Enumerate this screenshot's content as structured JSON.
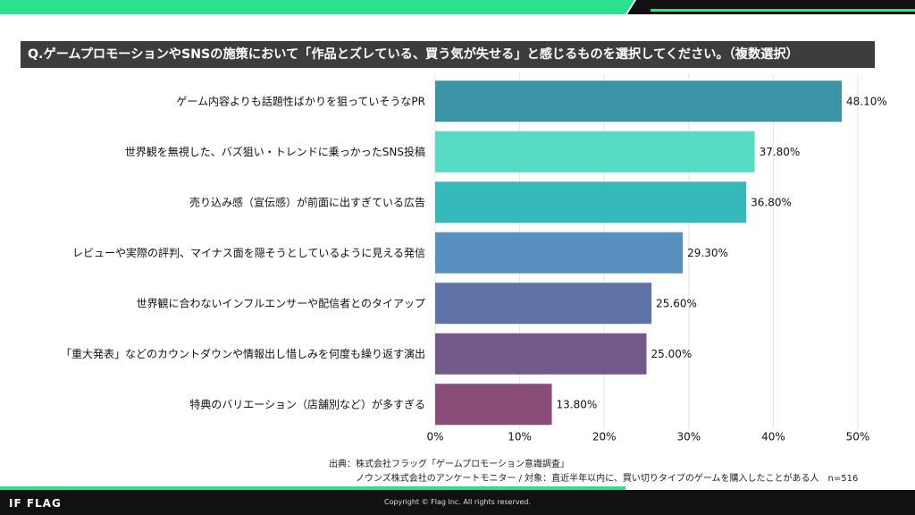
{
  "question": "Q.ゲームプロモーションやSNSの施策において「作品とズレている、買う気が失せる」と感じるものを選択してください。（複数選択）",
  "source": {
    "line1": "出典：株式会社フラッグ「ゲームプロモーション意識調査」",
    "line2": "ノウンズ株式会社のアンケートモニター / 対象：直近半年以内に、買い切りタイプのゲームを購入したことがある人　n=516"
  },
  "footer": {
    "logo": "IF FLAG",
    "copyright": "Copyright © Flag Inc. All rights reserved."
  },
  "colors": {
    "accent_green": "#2de08d",
    "dark": "#111111"
  },
  "chart_data": {
    "type": "bar",
    "orientation": "horizontal",
    "categories": [
      "ゲーム内容よりも話題性ばかりを狙っていそうなPR",
      "世界観を無視した、バズ狙い・トレンドに乗っかったSNS投稿",
      "売り込み感（宣伝感）が前面に出すぎている広告",
      "レビューや実際の評判、マイナス面を隠そうとしているように見える発信",
      "世界観に合わないインフルエンサーや配信者とのタイアップ",
      "「重大発表」などのカウントダウンや情報出し惜しみを何度も繰り返す演出",
      "特典のバリエーション（店舗別など）が多すぎる"
    ],
    "values": [
      48.1,
      37.8,
      36.8,
      29.3,
      25.6,
      25.0,
      13.8
    ],
    "value_labels": [
      "48.10%",
      "37.80%",
      "36.80%",
      "29.30%",
      "25.60%",
      "25.00%",
      "13.80%"
    ],
    "bar_colors": [
      "#3b93a6",
      "#56dcc4",
      "#36b9bb",
      "#5890bf",
      "#5f73a8",
      "#715a8a",
      "#8a4d79"
    ],
    "xlim": [
      0,
      50
    ],
    "xticks": [
      0,
      10,
      20,
      30,
      40,
      50
    ],
    "xtick_labels": [
      "0%",
      "10%",
      "20%",
      "30%",
      "40%",
      "50%"
    ],
    "grid": true
  }
}
